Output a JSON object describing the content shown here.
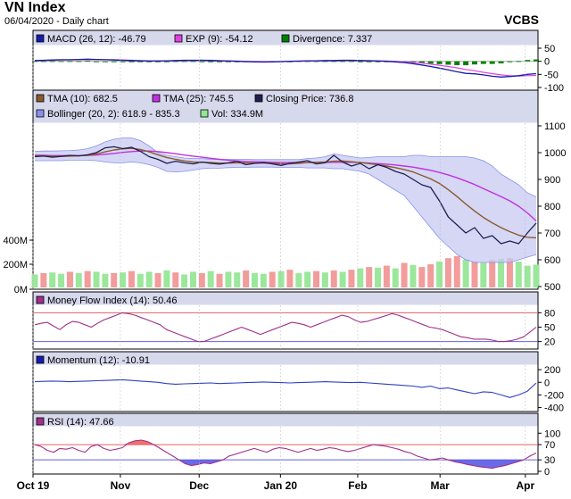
{
  "header": {
    "title": "VN Index",
    "subtitle": "06/04/2020 - Daily chart",
    "brand": "VCBS"
  },
  "chart_data": [
    {
      "type": "line",
      "panel": "macd",
      "legend": [
        {
          "label": "MACD (26, 12): -46.79",
          "color": "#1a1aa8"
        },
        {
          "label": "EXP (9): -54.12",
          "color": "#e040e0"
        },
        {
          "label": "Divergence: 7.337",
          "color": "#008000"
        }
      ],
      "ylim": [
        -100,
        50
      ],
      "y_ticks": [
        "50",
        "0",
        "-50",
        "-100"
      ],
      "y_tick_values": [
        50,
        0,
        -50,
        -100
      ],
      "series": [
        {
          "name": "MACD (26, 12)",
          "color": "#1a1aa8",
          "values": [
            3,
            4,
            5,
            6,
            6,
            7,
            8,
            7,
            6,
            5,
            4,
            3,
            2,
            1,
            1,
            2,
            3,
            4,
            4,
            4,
            3,
            2,
            1,
            0,
            -1,
            -2,
            -3,
            -2,
            -1,
            0,
            1,
            2,
            2,
            3,
            3,
            4,
            4,
            3,
            2,
            1,
            0,
            -2,
            -5,
            -9,
            -14,
            -20,
            -26,
            -33,
            -40,
            -46,
            -48,
            -52,
            -57,
            -60,
            -58,
            -55,
            -50,
            -47
          ]
        },
        {
          "name": "EXP (9)",
          "color": "#e040e0",
          "values": [
            2,
            3,
            4,
            5,
            5,
            6,
            6,
            7,
            6,
            6,
            5,
            4,
            3,
            2,
            2,
            2,
            2,
            3,
            3,
            4,
            4,
            3,
            2,
            1,
            0,
            -1,
            -1,
            -1,
            -1,
            0,
            0,
            1,
            1,
            2,
            2,
            3,
            3,
            3,
            3,
            2,
            1,
            0,
            -2,
            -4,
            -7,
            -11,
            -15,
            -20,
            -25,
            -31,
            -36,
            -42,
            -47,
            -52,
            -55,
            -56,
            -55,
            -54
          ]
        },
        {
          "name": "Divergence",
          "color": "#008000",
          "type": "bar",
          "values": [
            1,
            1,
            1,
            1,
            1,
            1,
            2,
            0,
            0,
            -1,
            -1,
            -1,
            -1,
            -1,
            -1,
            0,
            1,
            1,
            1,
            0,
            -1,
            -1,
            -1,
            -1,
            -1,
            -1,
            -2,
            -1,
            0,
            0,
            1,
            1,
            1,
            1,
            1,
            1,
            1,
            0,
            -1,
            -1,
            -1,
            -2,
            -3,
            -5,
            -7,
            -9,
            -11,
            -13,
            -15,
            -15,
            -12,
            -10,
            -10,
            -8,
            -3,
            1,
            5,
            7
          ]
        }
      ]
    },
    {
      "type": "line",
      "panel": "price",
      "legend": [
        {
          "label": "TMA (10): 682.5",
          "color": "#8b5a2b"
        },
        {
          "label": "TMA (25): 745.5",
          "color": "#c030e0"
        },
        {
          "label": "Closing Price: 736.8",
          "color": "#202050"
        },
        {
          "label": "Bollinger (20, 2): 618.9 - 835.3",
          "color": "#8890ee"
        },
        {
          "label": "Vol: 334.9M",
          "color": "#90e890"
        }
      ],
      "ylim": [
        500,
        1100
      ],
      "y_ticks": [
        "1100",
        "1000",
        "900",
        "800",
        "700",
        "600",
        "500"
      ],
      "y_tick_values": [
        1100,
        1000,
        900,
        800,
        700,
        600,
        500
      ],
      "volume_ticks": [
        "400M",
        "200M",
        "0M"
      ],
      "volume_tick_values": [
        400,
        200,
        0
      ],
      "volume_ylim": [
        0,
        650
      ],
      "series": [
        {
          "name": "Closing Price",
          "color": "#202050",
          "values": [
            985,
            987,
            983,
            986,
            990,
            988,
            992,
            1000,
            1018,
            1022,
            1015,
            1020,
            1005,
            985,
            975,
            960,
            968,
            962,
            958,
            965,
            960,
            957,
            962,
            968,
            955,
            960,
            963,
            958,
            952,
            960,
            965,
            970,
            958,
            962,
            990,
            965,
            950,
            960,
            940,
            955,
            945,
            930,
            920,
            900,
            880,
            870,
            820,
            760,
            730,
            700,
            720,
            680,
            690,
            660,
            670,
            660,
            700,
            737
          ]
        },
        {
          "name": "TMA (10)",
          "color": "#8b5a2b",
          "values": [
            988,
            988,
            987,
            986,
            987,
            988,
            990,
            995,
            1003,
            1010,
            1014,
            1016,
            1012,
            1003,
            992,
            982,
            975,
            969,
            965,
            964,
            963,
            961,
            961,
            962,
            962,
            961,
            961,
            960,
            958,
            958,
            960,
            963,
            964,
            965,
            968,
            969,
            966,
            963,
            959,
            955,
            950,
            944,
            937,
            928,
            915,
            902,
            885,
            862,
            836,
            808,
            782,
            758,
            738,
            720,
            705,
            692,
            684,
            682
          ]
        },
        {
          "name": "TMA (25)",
          "color": "#c030e0",
          "values": [
            990,
            990,
            989,
            989,
            989,
            989,
            990,
            991,
            994,
            997,
            1001,
            1004,
            1006,
            1006,
            1004,
            1000,
            996,
            991,
            987,
            983,
            979,
            975,
            972,
            969,
            967,
            966,
            965,
            964,
            963,
            963,
            963,
            963,
            963,
            963,
            964,
            964,
            964,
            963,
            961,
            959,
            957,
            954,
            950,
            946,
            940,
            934,
            926,
            917,
            906,
            894,
            881,
            866,
            851,
            836,
            820,
            800,
            775,
            745
          ]
        },
        {
          "name": "Bollinger upper",
          "color": "#8890ee",
          "values": [
            1005,
            1006,
            1006,
            1007,
            1008,
            1010,
            1015,
            1025,
            1040,
            1050,
            1055,
            1055,
            1045,
            1025,
            1000,
            990,
            985,
            980,
            978,
            978,
            975,
            975,
            975,
            975,
            975,
            974,
            974,
            974,
            974,
            974,
            974,
            978,
            980,
            985,
            995,
            990,
            985,
            980,
            982,
            985,
            985,
            985,
            985,
            990,
            990,
            985,
            985,
            985,
            985,
            985,
            980,
            970,
            950,
            920,
            900,
            880,
            850,
            835
          ]
        },
        {
          "name": "Bollinger lower",
          "color": "#8890ee",
          "values": [
            970,
            970,
            970,
            970,
            972,
            972,
            972,
            970,
            965,
            962,
            962,
            965,
            962,
            955,
            945,
            930,
            928,
            930,
            935,
            940,
            942,
            942,
            944,
            945,
            945,
            946,
            946,
            946,
            945,
            945,
            945,
            943,
            943,
            943,
            940,
            940,
            935,
            930,
            920,
            900,
            880,
            860,
            840,
            800,
            760,
            720,
            680,
            650,
            620,
            600,
            590,
            590,
            590,
            590,
            590,
            600,
            610,
            619
          ]
        },
        {
          "name": "Vol",
          "color": "#90e890",
          "type": "bar",
          "values": [
            190,
            210,
            220,
            200,
            230,
            210,
            240,
            230,
            200,
            210,
            220,
            240,
            200,
            230,
            210,
            250,
            220,
            190,
            230,
            210,
            240,
            200,
            230,
            220,
            250,
            210,
            200,
            230,
            240,
            260,
            210,
            230,
            240,
            220,
            250,
            230,
            260,
            280,
            300,
            290,
            320,
            280,
            360,
            330,
            300,
            340,
            380,
            430,
            460,
            410,
            380,
            360,
            400,
            420,
            430,
            380,
            320,
            335
          ],
          "colors": [
            "g",
            "r",
            "g",
            "g",
            "r",
            "g",
            "r",
            "g",
            "g",
            "r",
            "g",
            "r",
            "g",
            "g",
            "r",
            "g",
            "r",
            "g",
            "g",
            "r",
            "g",
            "r",
            "g",
            "g",
            "r",
            "g",
            "g",
            "r",
            "g",
            "r",
            "g",
            "g",
            "r",
            "g",
            "r",
            "g",
            "r",
            "g",
            "r",
            "g",
            "r",
            "g",
            "r",
            "g",
            "r",
            "r",
            "g",
            "r",
            "r",
            "g",
            "r",
            "g",
            "r",
            "g",
            "r",
            "g",
            "g",
            "g"
          ]
        }
      ]
    },
    {
      "type": "line",
      "panel": "mfi",
      "legend": [
        {
          "label": "Money Flow Index (14): 50.46",
          "color": "#a0308a"
        }
      ],
      "ylim": [
        10,
        90
      ],
      "y_ticks": [
        "80",
        "50",
        "20"
      ],
      "y_tick_values": [
        80,
        50,
        20
      ],
      "series": [
        {
          "name": "Money Flow Index (14)",
          "color": "#a0308a",
          "values": [
            55,
            58,
            60,
            52,
            45,
            55,
            62,
            60,
            55,
            50,
            58,
            65,
            70,
            75,
            80,
            78,
            75,
            70,
            65,
            60,
            55,
            45,
            40,
            35,
            30,
            25,
            20,
            20,
            25,
            30,
            35,
            40,
            45,
            50,
            45,
            40,
            35,
            40,
            45,
            50,
            55,
            60,
            58,
            55,
            50,
            55,
            60,
            65,
            70,
            75,
            72,
            65,
            60,
            62,
            66,
            70,
            74,
            78,
            75,
            70,
            65,
            60,
            55,
            50,
            48,
            45,
            40,
            35,
            30,
            28,
            25,
            25,
            25,
            23,
            20,
            20,
            22,
            25,
            30,
            40,
            50
          ]
        }
      ]
    },
    {
      "type": "line",
      "panel": "momentum",
      "legend": [
        {
          "label": "Momentum (12): -10.91",
          "color": "#1a1aa8"
        }
      ],
      "ylim": [
        -420,
        230
      ],
      "y_ticks": [
        "200",
        "0",
        "-200",
        "-400"
      ],
      "y_tick_values": [
        200,
        0,
        -200,
        -400
      ],
      "series": [
        {
          "name": "Momentum (12)",
          "color": "#3040c0",
          "values": [
            10,
            15,
            20,
            15,
            10,
            15,
            20,
            25,
            30,
            35,
            40,
            30,
            20,
            10,
            0,
            -20,
            -30,
            -25,
            -20,
            -15,
            -10,
            -20,
            -15,
            -10,
            -5,
            0,
            5,
            0,
            -5,
            -10,
            -5,
            0,
            5,
            10,
            5,
            0,
            -5,
            0,
            -10,
            -20,
            -30,
            -40,
            -50,
            -60,
            -80,
            -60,
            -100,
            -90,
            -120,
            -150,
            -180,
            -150,
            -160,
            -200,
            -240,
            -200,
            -140,
            -11
          ]
        }
      ]
    },
    {
      "type": "line",
      "panel": "rsi",
      "legend": [
        {
          "label": "RSI (14): 47.66",
          "color": "#a0308a"
        }
      ],
      "ylim": [
        0,
        110
      ],
      "y_ticks": [
        "100",
        "70",
        "30",
        "0"
      ],
      "y_tick_values": [
        100,
        70,
        30,
        0
      ],
      "series": [
        {
          "name": "RSI (14)",
          "color": "#a0308a",
          "values": [
            70,
            65,
            55,
            50,
            60,
            58,
            62,
            55,
            50,
            65,
            70,
            60,
            55,
            58,
            62,
            75,
            80,
            82,
            78,
            70,
            60,
            50,
            40,
            30,
            20,
            15,
            18,
            22,
            20,
            25,
            30,
            40,
            45,
            50,
            55,
            60,
            55,
            50,
            58,
            62,
            60,
            55,
            50,
            55,
            60,
            55,
            58,
            62,
            60,
            55,
            52,
            55,
            60,
            65,
            70,
            68,
            66,
            62,
            58,
            52,
            48,
            40,
            35,
            30,
            32,
            35,
            30,
            25,
            22,
            18,
            15,
            12,
            10,
            8,
            12,
            15,
            20,
            25,
            30,
            40,
            48
          ]
        }
      ]
    }
  ],
  "x_axis": {
    "tick_labels": [
      "Oct 19",
      "Nov",
      "Dec",
      "Jan 20",
      "Feb",
      "Mar",
      "Apr"
    ],
    "tick_positions": [
      0,
      0.173,
      0.329,
      0.49,
      0.643,
      0.806,
      0.975
    ]
  }
}
